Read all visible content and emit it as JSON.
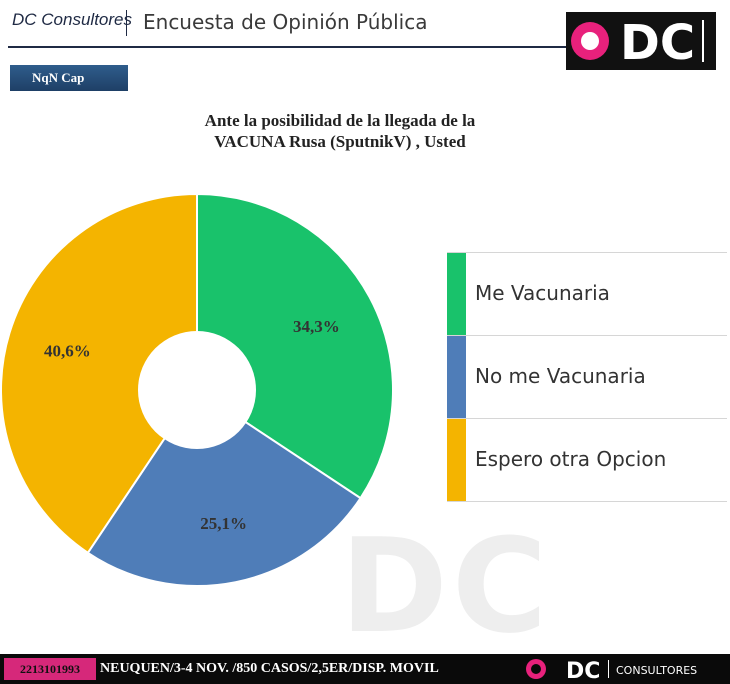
{
  "header": {
    "brand": "DC Consultores",
    "title": "Encuesta de Opinión Pública",
    "logo_text": "DC",
    "tab_label": "NqN Cap"
  },
  "question": {
    "line1": "Ante la posibilidad de la llegada de la",
    "line2": "VACUNA Rusa (SputnikV) , Usted"
  },
  "chart_data": {
    "type": "pie",
    "categories": [
      "Me Vacunaria",
      "No me Vacunaria",
      "Espero otra Opcion"
    ],
    "values": [
      34.3,
      25.1,
      40.6
    ],
    "data_labels": [
      "34,3%",
      "25,1%",
      "40,6%"
    ],
    "colors": [
      "#19c26b",
      "#4f7db8",
      "#f4b400"
    ],
    "donut": true,
    "legend_position": "right"
  },
  "legend": [
    {
      "label": "Me Vacunaria",
      "color": "#19c26b"
    },
    {
      "label": "No me Vacunaria",
      "color": "#4f7db8"
    },
    {
      "label": "Espero otra Opcion",
      "color": "#f4b400"
    }
  ],
  "watermark": "DC",
  "footer": {
    "phone": "2213101993",
    "info": "NEUQUEN/3-4 NOV. /850 CASOS/2,5ER/DISP. MOVIL",
    "logo_text": "DC",
    "logo_sub": "CONSULTORES"
  },
  "colors": {
    "accent_pink": "#e8217c",
    "navy": "#1f2a44"
  }
}
